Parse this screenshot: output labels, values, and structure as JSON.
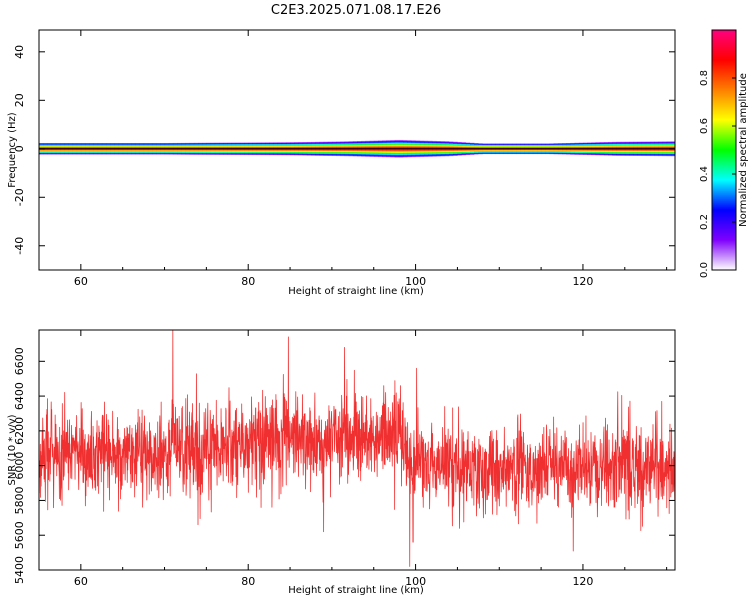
{
  "title": "C2E3.2025.071.08.17.E26",
  "colors": {
    "snr_line": "#f03030",
    "background": "#ffffff",
    "axis": "#000000"
  },
  "chart_data": [
    {
      "type": "heatmap",
      "title": "C2E3.2025.071.08.17.E26",
      "xlabel": "Height of straight line (km)",
      "ylabel": "Frequency (Hz)",
      "colorbar_label": "Normalized spectral amplitude",
      "xlim": [
        55,
        131
      ],
      "ylim": [
        -50,
        49
      ],
      "xticks": [
        60,
        80,
        100,
        120
      ],
      "yticks": [
        -40,
        -20,
        0,
        20,
        40
      ],
      "colorbar_range": [
        0,
        1
      ],
      "colorbar_ticks": [
        0.0,
        0.2,
        0.4,
        0.6,
        0.8
      ],
      "colormap": [
        "#ffffff",
        "#7f00ff",
        "#0000ff",
        "#00ffff",
        "#00ff00",
        "#ffff00",
        "#ff7f00",
        "#ff0000",
        "#ff0080"
      ],
      "signal_frequency_hz": 0,
      "spectral_width": {
        "x": [
          55,
          70,
          85,
          92,
          98,
          104,
          108,
          116,
          124,
          131
        ],
        "hz": [
          2.5,
          2.5,
          2.8,
          3.2,
          3.8,
          3.2,
          2.3,
          2.3,
          3.0,
          3.2
        ]
      },
      "grid": false
    },
    {
      "type": "line",
      "xlabel": "Height of straight line (km)",
      "ylabel": "SNR (10 * v/v)",
      "xlim": [
        55,
        131
      ],
      "ylim": [
        5400,
        6780
      ],
      "xticks": [
        60,
        80,
        100,
        120
      ],
      "yticks": [
        5400,
        5600,
        5800,
        6000,
        6200,
        6400,
        6600
      ],
      "series": [
        {
          "color": "#f03030",
          "trend": {
            "x": [
              55,
              65,
              75,
              85,
              92,
              98,
              100,
              110,
              120,
              131
            ],
            "y": [
              6040,
              6070,
              6090,
              6160,
              6180,
              6140,
              6020,
              5990,
              6000,
              6010
            ]
          },
          "noise_std": 130,
          "spikes": [
            {
              "x": 71,
              "y": 6780
            },
            {
              "x": 84.8,
              "y": 6740
            },
            {
              "x": 91.5,
              "y": 6680
            },
            {
              "x": 99.3,
              "y": 5420
            },
            {
              "x": 99.7,
              "y": 5560
            },
            {
              "x": 89,
              "y": 5620
            },
            {
              "x": 74,
              "y": 5660
            }
          ]
        }
      ],
      "grid": false
    }
  ]
}
